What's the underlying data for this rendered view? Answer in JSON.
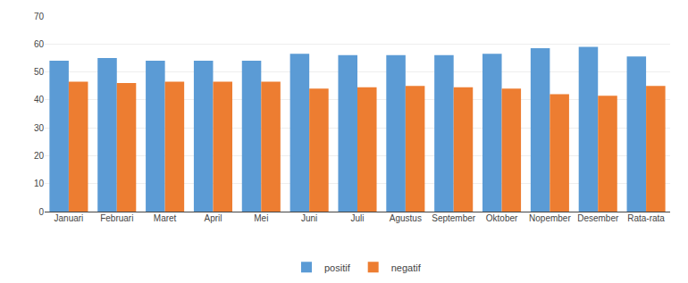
{
  "chart_data": {
    "type": "bar",
    "categories": [
      "Januari",
      "Februari",
      "Maret",
      "April",
      "Mei",
      "Juni",
      "Juli",
      "Agustus",
      "September",
      "Oktober",
      "Nopember",
      "Desember",
      "Rata-rata"
    ],
    "series": [
      {
        "name": "positif",
        "color": "#5b9bd5",
        "values": [
          54,
          55,
          54,
          54,
          54,
          56.5,
          56,
          56,
          56,
          56.5,
          58.5,
          59,
          55.5
        ]
      },
      {
        "name": "negatif",
        "color": "#ed7d31",
        "values": [
          46.5,
          46,
          46.5,
          46.5,
          46.5,
          44,
          44.5,
          45,
          44.5,
          44,
          42,
          41.5,
          45
        ]
      }
    ],
    "ylim": [
      0,
      70
    ],
    "yticks": [
      0,
      10,
      20,
      30,
      40,
      50,
      60,
      70
    ],
    "grid": true,
    "legend": "bottom"
  }
}
